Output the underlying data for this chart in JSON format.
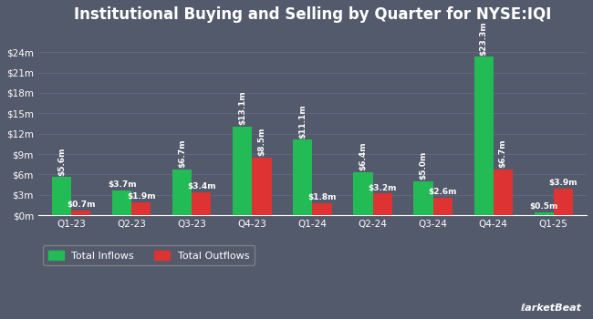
{
  "title": "Institutional Buying and Selling by Quarter for NYSE:IQI",
  "quarters": [
    "Q1-23",
    "Q2-23",
    "Q3-23",
    "Q4-23",
    "Q1-24",
    "Q2-24",
    "Q3-24",
    "Q4-24",
    "Q1-25"
  ],
  "inflows": [
    5.6,
    3.7,
    6.7,
    13.1,
    11.1,
    6.4,
    5.0,
    23.3,
    0.5
  ],
  "outflows": [
    0.7,
    1.9,
    3.4,
    8.5,
    1.8,
    3.2,
    2.6,
    6.7,
    3.9
  ],
  "inflow_labels": [
    "$5.6m",
    "$3.7m",
    "$6.7m",
    "$13.1m",
    "$11.1m",
    "$6.4m",
    "$5.0m",
    "$23.3m",
    "$0.5m"
  ],
  "outflow_labels": [
    "$0.7m",
    "$1.9m",
    "$3.4m",
    "$8.5m",
    "$1.8m",
    "$3.2m",
    "$2.6m",
    "$6.7m",
    "$3.9m"
  ],
  "inflow_color": "#22bb55",
  "outflow_color": "#dd3333",
  "background_color": "#535a6b",
  "text_color": "#ffffff",
  "grid_color": "#626a7d",
  "yticks": [
    0,
    3,
    6,
    9,
    12,
    15,
    18,
    21,
    24
  ],
  "ytick_labels": [
    "$0m",
    "$3m",
    "$6m",
    "$9m",
    "$12m",
    "$15m",
    "$18m",
    "$21m",
    "$24m"
  ],
  "ylim": [
    0,
    27
  ],
  "bar_width": 0.32,
  "legend_inflow": "Total Inflows",
  "legend_outflow": "Total Outflows",
  "title_fontsize": 12,
  "label_fontsize": 6.5,
  "tick_fontsize": 7.5,
  "legend_fontsize": 8,
  "rotate_threshold": 5.0
}
